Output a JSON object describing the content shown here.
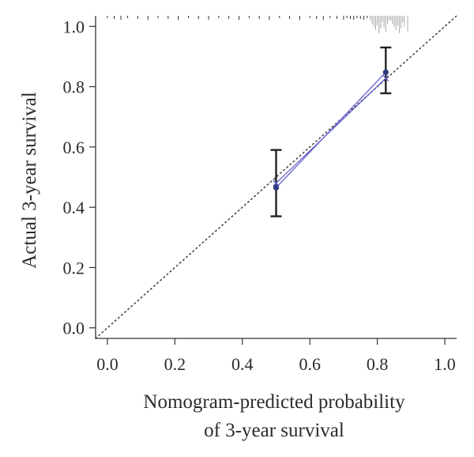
{
  "chart_data": {
    "type": "calibration",
    "xlabel_lines": [
      "Nomogram-predicted probability",
      "of 3-year survival"
    ],
    "ylabel": "Actual 3-year survival",
    "xlim": [
      -0.035,
      1.035
    ],
    "ylim": [
      -0.035,
      1.035
    ],
    "xticks": [
      0.0,
      0.2,
      0.4,
      0.6,
      0.8,
      1.0
    ],
    "yticks": [
      0.0,
      0.2,
      0.4,
      0.6,
      0.8,
      1.0
    ],
    "xtick_labels": [
      "0.0",
      "0.2",
      "0.4",
      "0.6",
      "0.8",
      "1.0"
    ],
    "ytick_labels": [
      "0.0",
      "0.2",
      "0.4",
      "0.6",
      "0.8",
      "1.0"
    ],
    "reference_line": {
      "from": [
        -0.035,
        -0.035
      ],
      "to": [
        1.035,
        1.035
      ],
      "style": "dotted",
      "color": "#444444"
    },
    "observed": {
      "color": "#2e3a80",
      "line_color": "#6a6ad0",
      "points": [
        {
          "x": 0.5,
          "y": 0.465,
          "lower": 0.37,
          "upper": 0.59
        },
        {
          "x": 0.825,
          "y": 0.848,
          "lower": 0.778,
          "upper": 0.93
        }
      ]
    },
    "bias_corrected": {
      "color": "#5a5ac8",
      "points": [
        {
          "x": 0.5,
          "y": 0.48
        },
        {
          "x": 0.825,
          "y": 0.828
        }
      ]
    },
    "rug": {
      "dark": [
        0.0,
        0.02,
        0.04,
        0.06,
        0.09,
        0.12,
        0.15,
        0.18,
        0.21,
        0.24,
        0.27,
        0.3,
        0.33,
        0.36,
        0.39,
        0.42,
        0.45,
        0.48,
        0.51,
        0.54,
        0.57,
        0.6,
        0.62,
        0.64,
        0.66,
        0.68,
        0.7,
        0.71,
        0.72,
        0.73,
        0.74,
        0.75,
        0.76,
        0.77,
        0.78
      ],
      "light": [
        0.78,
        0.785,
        0.79,
        0.795,
        0.8,
        0.805,
        0.81,
        0.815,
        0.82,
        0.825,
        0.83,
        0.835,
        0.84,
        0.845,
        0.85,
        0.855,
        0.86,
        0.865,
        0.87,
        0.875,
        0.88,
        0.89
      ],
      "dark_color": "#333333",
      "light_color": "#aaaaaa"
    }
  }
}
